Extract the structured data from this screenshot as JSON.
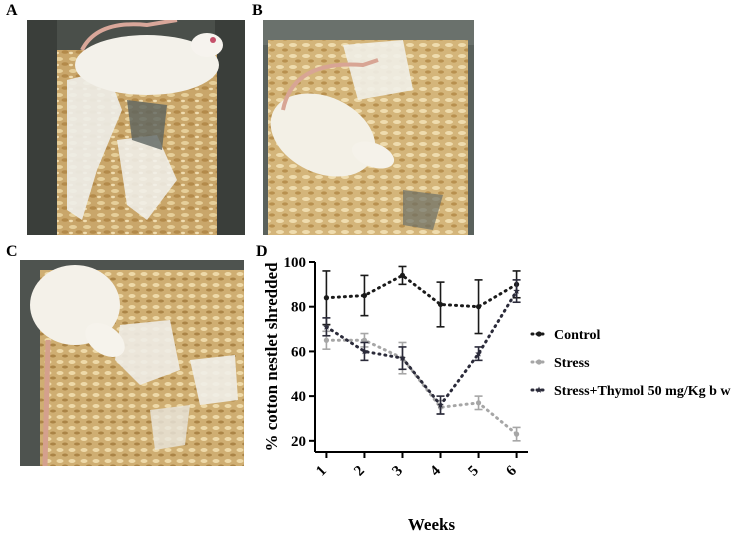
{
  "panels": {
    "a": "A",
    "b": "B",
    "c": "C",
    "d": "D"
  },
  "photos": [
    {
      "name": "photo-a-rat-nest",
      "icon": "rat-photo-icon"
    },
    {
      "name": "photo-b-rat-nest",
      "icon": "rat-photo-icon"
    },
    {
      "name": "photo-c-rat-nest",
      "icon": "rat-photo-icon"
    }
  ],
  "chart_data": {
    "type": "line",
    "title": "",
    "xlabel": "Weeks",
    "ylabel": "% cotton nestlet shredded",
    "categories": [
      "1",
      "2",
      "3",
      "4",
      "5",
      "6"
    ],
    "x": [
      1,
      2,
      3,
      4,
      5,
      6
    ],
    "xlim": [
      0.7,
      6.3
    ],
    "ylim": [
      15,
      100
    ],
    "yticks": [
      20,
      40,
      60,
      80,
      100
    ],
    "grid": false,
    "legend": "right",
    "series": [
      {
        "name": "Control",
        "color": "#1a1a1a",
        "marker": "circle",
        "values": [
          84,
          85,
          94,
          81,
          80,
          90
        ],
        "errors": [
          12,
          9,
          4,
          10,
          12,
          6
        ]
      },
      {
        "name": "Stress",
        "color": "#a6a6a6",
        "marker": "circle",
        "values": [
          65,
          65,
          57,
          35,
          37,
          23
        ],
        "errors": [
          4,
          3,
          7,
          3,
          3,
          3
        ]
      },
      {
        "name": "Stress+Thymol 50 mg/Kg b w",
        "color": "#2b2b3a",
        "marker": "star",
        "values": [
          71,
          60,
          57,
          36,
          59,
          87
        ],
        "errors": [
          4,
          4,
          5,
          4,
          3,
          5
        ]
      }
    ]
  }
}
